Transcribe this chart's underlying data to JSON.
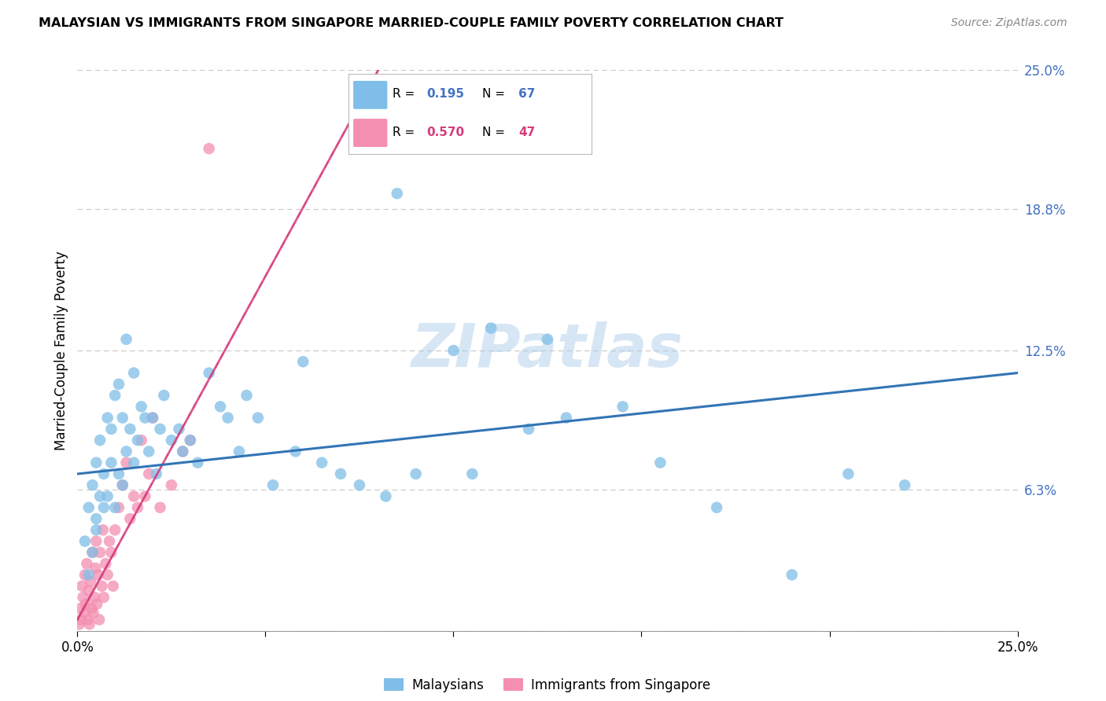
{
  "title": "MALAYSIAN VS IMMIGRANTS FROM SINGAPORE MARRIED-COUPLE FAMILY POVERTY CORRELATION CHART",
  "source": "Source: ZipAtlas.com",
  "ylabel": "Married-Couple Family Poverty",
  "xlim": [
    0.0,
    25.0
  ],
  "ylim": [
    0.0,
    25.0
  ],
  "yticks": [
    0.0,
    6.3,
    12.5,
    18.8,
    25.0
  ],
  "ytick_labels": [
    "",
    "6.3%",
    "12.5%",
    "18.8%",
    "25.0%"
  ],
  "blue_color": "#7fbee8",
  "pink_color": "#f48fb1",
  "trend_blue_color": "#3374b5",
  "trend_pink_color": "#d63a7a",
  "watermark": "ZIPatlas",
  "legend_r1_val": "0.195",
  "legend_n1_val": "67",
  "legend_r2_val": "0.570",
  "legend_n2_val": "47",
  "malaysians_x": [
    0.2,
    0.3,
    0.3,
    0.4,
    0.4,
    0.5,
    0.5,
    0.5,
    0.6,
    0.6,
    0.7,
    0.7,
    0.8,
    0.8,
    0.9,
    0.9,
    1.0,
    1.0,
    1.1,
    1.1,
    1.2,
    1.2,
    1.3,
    1.4,
    1.5,
    1.5,
    1.6,
    1.7,
    1.8,
    1.9,
    2.0,
    2.1,
    2.2,
    2.3,
    2.5,
    2.7,
    3.0,
    3.2,
    3.5,
    3.8,
    4.0,
    4.3,
    4.8,
    5.2,
    5.8,
    6.5,
    7.0,
    7.5,
    8.2,
    9.0,
    10.0,
    11.0,
    12.0,
    13.0,
    14.5,
    15.5,
    17.0,
    19.0,
    20.5,
    22.0,
    1.3,
    2.8,
    4.5,
    6.0,
    8.5,
    10.5,
    12.5
  ],
  "malaysians_y": [
    4.0,
    5.5,
    2.5,
    6.5,
    3.5,
    5.0,
    7.5,
    4.5,
    8.5,
    6.0,
    7.0,
    5.5,
    9.5,
    6.0,
    9.0,
    7.5,
    10.5,
    5.5,
    11.0,
    7.0,
    9.5,
    6.5,
    8.0,
    9.0,
    11.5,
    7.5,
    8.5,
    10.0,
    9.5,
    8.0,
    9.5,
    7.0,
    9.0,
    10.5,
    8.5,
    9.0,
    8.5,
    7.5,
    11.5,
    10.0,
    9.5,
    8.0,
    9.5,
    6.5,
    8.0,
    7.5,
    7.0,
    6.5,
    6.0,
    7.0,
    12.5,
    13.5,
    9.0,
    9.5,
    10.0,
    7.5,
    5.5,
    2.5,
    7.0,
    6.5,
    13.0,
    8.0,
    10.5,
    12.0,
    19.5,
    7.0,
    13.0
  ],
  "singapore_x": [
    0.05,
    0.08,
    0.1,
    0.12,
    0.15,
    0.18,
    0.2,
    0.22,
    0.25,
    0.28,
    0.3,
    0.32,
    0.35,
    0.38,
    0.4,
    0.42,
    0.45,
    0.48,
    0.5,
    0.52,
    0.55,
    0.58,
    0.6,
    0.65,
    0.68,
    0.7,
    0.75,
    0.8,
    0.85,
    0.9,
    0.95,
    1.0,
    1.1,
    1.2,
    1.3,
    1.4,
    1.5,
    1.6,
    1.7,
    1.8,
    1.9,
    2.0,
    2.2,
    2.5,
    3.0,
    3.5,
    2.8
  ],
  "singapore_y": [
    0.3,
    1.0,
    0.5,
    2.0,
    1.5,
    0.8,
    2.5,
    1.2,
    3.0,
    0.5,
    1.8,
    0.3,
    2.2,
    1.0,
    3.5,
    0.8,
    1.5,
    2.8,
    4.0,
    1.2,
    2.5,
    0.5,
    3.5,
    2.0,
    4.5,
    1.5,
    3.0,
    2.5,
    4.0,
    3.5,
    2.0,
    4.5,
    5.5,
    6.5,
    7.5,
    5.0,
    6.0,
    5.5,
    8.5,
    6.0,
    7.0,
    9.5,
    5.5,
    6.5,
    8.5,
    21.5,
    8.0
  ],
  "blue_trend_x0": 0.0,
  "blue_trend_y0": 7.0,
  "blue_trend_x1": 25.0,
  "blue_trend_y1": 11.5,
  "pink_trend_x0": 0.0,
  "pink_trend_y0": 0.5,
  "pink_trend_x1": 8.0,
  "pink_trend_y1": 25.0
}
